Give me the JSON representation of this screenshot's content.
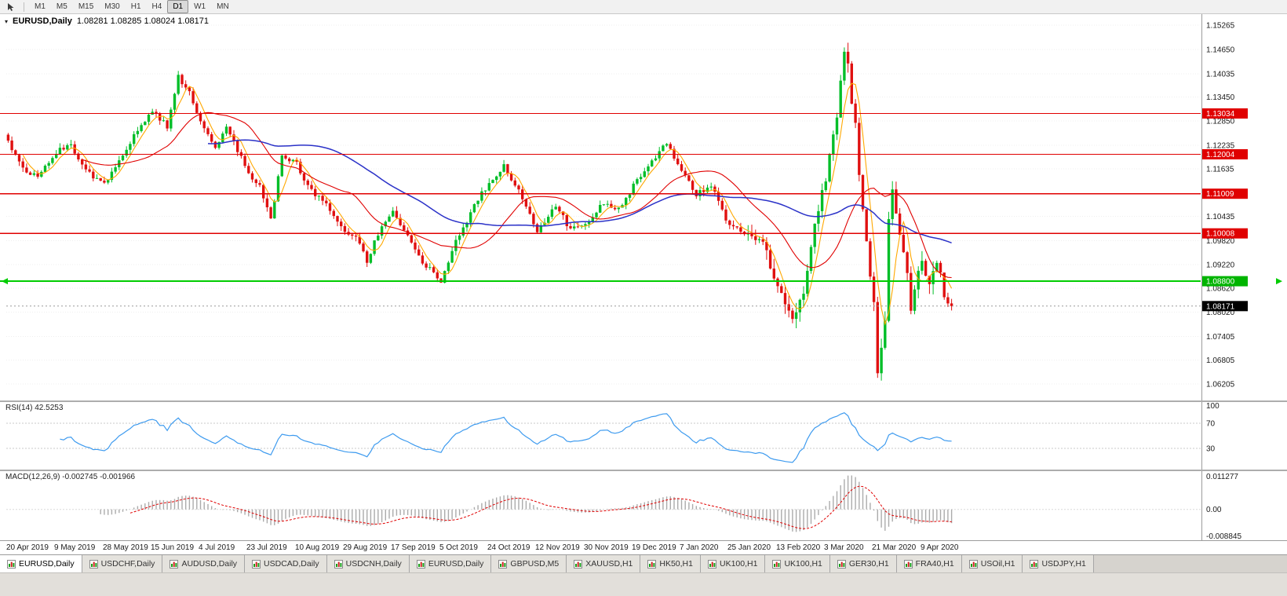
{
  "colors": {
    "up": "#00BE28",
    "down": "#E01010",
    "ma_fast": "#FFA800",
    "ma_mid": "#E00000",
    "ma_slow": "#2B32C8",
    "hline_red": "#E00000",
    "hline_green": "#00CC00",
    "tag_green": "#00B400",
    "tag_black": "#000000",
    "rsi_line": "#3E9BEF",
    "macd_hist": "#ABABAB",
    "macd_signal": "#E00000"
  },
  "toolbar": {
    "timeframes": [
      "M1",
      "M5",
      "M15",
      "M30",
      "H1",
      "H4",
      "D1",
      "W1",
      "MN"
    ],
    "active": "D1"
  },
  "chart": {
    "title_symbol": "EURUSD,Daily",
    "title_ohlc": "1.08281 1.08285 1.08024 1.08171",
    "price_axis_ticks": [
      "1.15265",
      "1.14650",
      "1.14035",
      "1.13450",
      "1.12850",
      "1.12235",
      "1.11635",
      "1.10435",
      "1.09820",
      "1.09220",
      "1.08620",
      "1.08020",
      "1.07405",
      "1.06805",
      "1.06205"
    ],
    "red_lines": [
      "1.13034",
      "1.12004",
      "1.11009",
      "1.10008"
    ],
    "green_line": "1.08800",
    "current_price": "1.08171"
  },
  "rsi": {
    "label": "RSI(14) 42.5253",
    "period": 14,
    "value": 42.5253,
    "axis": [
      "100",
      "70",
      "30"
    ],
    "levels": [
      70,
      30
    ]
  },
  "macd": {
    "label": "MACD(12,26,9) -0.002745 -0.001966",
    "fast": 12,
    "slow": 26,
    "signal": 9,
    "main_value": -0.002745,
    "signal_value": -0.001966,
    "axis_top": "0.011277",
    "axis_zero": "0.00",
    "axis_bottom": "-0.008845"
  },
  "date_axis": [
    "20 Apr 2019",
    "9 May 2019",
    "28 May 2019",
    "15 Jun 2019",
    "4 Jul 2019",
    "23 Jul 2019",
    "10 Aug 2019",
    "29 Aug 2019",
    "17 Sep 2019",
    "5 Oct 2019",
    "24 Oct 2019",
    "12 Nov 2019",
    "30 Nov 2019",
    "19 Dec 2019",
    "7 Jan 2020",
    "25 Jan 2020",
    "13 Feb 2020",
    "3 Mar 2020",
    "21 Mar 2020",
    "9 Apr 2020"
  ],
  "tabs": {
    "active_index": 0,
    "items": [
      "EURUSD,Daily",
      "USDCHF,Daily",
      "AUDUSD,Daily",
      "USDCAD,Daily",
      "USDCNH,Daily",
      "EURUSD,Daily",
      "GBPUSD,M5",
      "XAUUSD,H1",
      "HK50,H1",
      "UK100,H1",
      "UK100,H1",
      "GER30,H1",
      "FRA40,H1",
      "USOil,H1",
      "USDJPY,H1"
    ]
  },
  "chart_data": {
    "type": "candlestick",
    "symbol": "EURUSD",
    "timeframe": "Daily",
    "bars": 256,
    "bars_per_date_tick": 13,
    "price_range_top": 1.15265,
    "price_range_bottom": 1.06205,
    "last_close": 1.08171,
    "overlays": {
      "sma_fast": 5,
      "sma_mid": 21,
      "sma_slow": 55
    },
    "horizontal_levels_red": [
      1.13034,
      1.12004,
      1.11009,
      1.10008
    ],
    "horizontal_level_green": 1.088,
    "close_anchors": [
      [
        0,
        1.1235
      ],
      [
        4,
        1.116
      ],
      [
        8,
        1.1145
      ],
      [
        13,
        1.1205
      ],
      [
        17,
        1.1225
      ],
      [
        21,
        1.116
      ],
      [
        26,
        1.1125
      ],
      [
        30,
        1.118
      ],
      [
        34,
        1.125
      ],
      [
        39,
        1.131
      ],
      [
        43,
        1.127
      ],
      [
        46,
        1.1395
      ],
      [
        49,
        1.136
      ],
      [
        52,
        1.1285
      ],
      [
        56,
        1.122
      ],
      [
        59,
        1.127
      ],
      [
        62,
        1.121
      ],
      [
        65,
        1.115
      ],
      [
        68,
        1.112
      ],
      [
        71,
        1.1035
      ],
      [
        74,
        1.1195
      ],
      [
        78,
        1.1175
      ],
      [
        81,
        1.112
      ],
      [
        84,
        1.109
      ],
      [
        88,
        1.105
      ],
      [
        91,
        1.1
      ],
      [
        94,
        1.099
      ],
      [
        97,
        1.093
      ],
      [
        100,
        1.1
      ],
      [
        104,
        1.106
      ],
      [
        108,
        1.099
      ],
      [
        112,
        1.093
      ],
      [
        115,
        1.09
      ],
      [
        117,
        1.0882
      ],
      [
        121,
        1.098
      ],
      [
        126,
        1.107
      ],
      [
        130,
        1.113
      ],
      [
        134,
        1.117
      ],
      [
        138,
        1.111
      ],
      [
        143,
        1.101
      ],
      [
        148,
        1.107
      ],
      [
        152,
        1.101
      ],
      [
        156,
        1.102
      ],
      [
        161,
        1.108
      ],
      [
        165,
        1.106
      ],
      [
        169,
        1.112
      ],
      [
        175,
        1.119
      ],
      [
        178,
        1.123
      ],
      [
        182,
        1.116
      ],
      [
        186,
        1.11
      ],
      [
        190,
        1.112
      ],
      [
        195,
        1.102
      ],
      [
        200,
        1.1
      ],
      [
        204,
        1.0975
      ],
      [
        208,
        1.087
      ],
      [
        212,
        1.0788
      ],
      [
        215,
        1.085
      ],
      [
        218,
        1.103
      ],
      [
        221,
        1.114
      ],
      [
        224,
        1.13
      ],
      [
        226,
        1.147
      ],
      [
        227,
        1.143
      ],
      [
        228,
        1.134
      ],
      [
        229,
        1.129
      ],
      [
        230,
        1.114
      ],
      [
        231,
        1.107
      ],
      [
        232,
        1.099
      ],
      [
        233,
        1.09
      ],
      [
        234,
        1.082
      ],
      [
        235,
        1.064
      ],
      [
        236,
        1.072
      ],
      [
        237,
        1.079
      ],
      [
        238,
        1.104
      ],
      [
        239,
        1.112
      ],
      [
        240,
        1.106
      ],
      [
        241,
        1.099
      ],
      [
        242,
        1.096
      ],
      [
        243,
        1.09
      ],
      [
        244,
        1.08
      ],
      [
        245,
        1.086
      ],
      [
        246,
        1.091
      ],
      [
        247,
        1.093
      ],
      [
        248,
        1.089
      ],
      [
        249,
        1.087
      ],
      [
        250,
        1.09
      ],
      [
        251,
        1.093
      ],
      [
        252,
        1.089
      ],
      [
        253,
        1.085
      ],
      [
        254,
        1.083
      ],
      [
        255,
        1.08171
      ]
    ]
  }
}
